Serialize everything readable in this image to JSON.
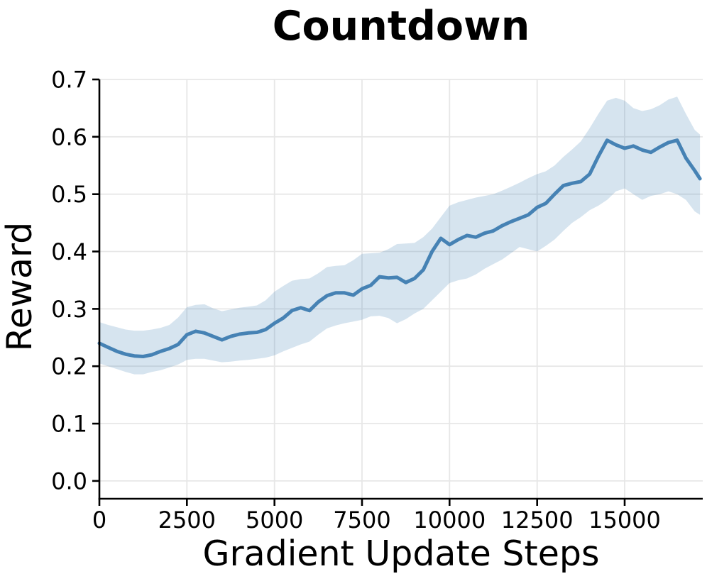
{
  "chart_data": {
    "type": "line",
    "title": "Countdown",
    "xlabel": "Gradient Update Steps",
    "ylabel": "Reward",
    "xlim": [
      0,
      17230
    ],
    "ylim": [
      -0.031,
      0.7
    ],
    "grid": true,
    "legend_position": "none",
    "colors": {
      "line": "#4682B4",
      "band": "rgba(70,130,180,0.22)",
      "grid": "#e7e7e7",
      "axis": "#000000"
    },
    "x_ticks": {
      "values": [
        0,
        2500,
        5000,
        7500,
        10000,
        12500,
        15000
      ],
      "labels": [
        "0",
        "2500",
        "5000",
        "7500",
        "10000",
        "12500",
        "15000"
      ]
    },
    "y_ticks": {
      "values": [
        0.0,
        0.1,
        0.2,
        0.3,
        0.4,
        0.5,
        0.6,
        0.7
      ],
      "labels": [
        "0.0",
        "0.1",
        "0.2",
        "0.3",
        "0.4",
        "0.5",
        "0.6",
        "0.7"
      ]
    },
    "x": [
      0,
      250,
      500,
      750,
      1000,
      1250,
      1500,
      1750,
      2000,
      2250,
      2500,
      2750,
      3000,
      3250,
      3500,
      3750,
      4000,
      4250,
      4500,
      4750,
      5000,
      5250,
      5500,
      5750,
      6000,
      6250,
      6500,
      6750,
      7000,
      7250,
      7500,
      7750,
      8000,
      8250,
      8500,
      8750,
      9000,
      9250,
      9500,
      9750,
      10000,
      10250,
      10500,
      10750,
      11000,
      11250,
      11500,
      11750,
      12000,
      12250,
      12500,
      12750,
      13000,
      13250,
      13500,
      13750,
      14000,
      14250,
      14500,
      14750,
      15000,
      15250,
      15500,
      15750,
      16000,
      16250,
      16500,
      16750,
      17000,
      17150
    ],
    "series": [
      {
        "name": "mean reward",
        "values": [
          0.24,
          0.233,
          0.226,
          0.221,
          0.218,
          0.217,
          0.22,
          0.226,
          0.231,
          0.238,
          0.255,
          0.261,
          0.258,
          0.252,
          0.246,
          0.252,
          0.256,
          0.258,
          0.259,
          0.264,
          0.275,
          0.284,
          0.297,
          0.302,
          0.297,
          0.312,
          0.323,
          0.328,
          0.328,
          0.324,
          0.335,
          0.341,
          0.356,
          0.354,
          0.355,
          0.346,
          0.353,
          0.368,
          0.4,
          0.423,
          0.412,
          0.421,
          0.428,
          0.425,
          0.432,
          0.436,
          0.445,
          0.452,
          0.458,
          0.464,
          0.477,
          0.484,
          0.5,
          0.515,
          0.519,
          0.522,
          0.535,
          0.566,
          0.594,
          0.586,
          0.58,
          0.584,
          0.577,
          0.573,
          0.582,
          0.59,
          0.594,
          0.563,
          0.541,
          0.527
        ]
      }
    ],
    "band": {
      "name": "confidence band",
      "lower": [
        0.205,
        0.2,
        0.195,
        0.19,
        0.186,
        0.186,
        0.19,
        0.193,
        0.198,
        0.203,
        0.211,
        0.213,
        0.213,
        0.21,
        0.207,
        0.208,
        0.21,
        0.211,
        0.213,
        0.215,
        0.219,
        0.226,
        0.232,
        0.238,
        0.243,
        0.255,
        0.266,
        0.271,
        0.275,
        0.278,
        0.281,
        0.287,
        0.288,
        0.284,
        0.275,
        0.282,
        0.292,
        0.3,
        0.315,
        0.33,
        0.345,
        0.35,
        0.353,
        0.36,
        0.37,
        0.378,
        0.386,
        0.397,
        0.408,
        0.404,
        0.4,
        0.41,
        0.421,
        0.436,
        0.45,
        0.46,
        0.472,
        0.48,
        0.49,
        0.505,
        0.51,
        0.5,
        0.49,
        0.497,
        0.5,
        0.505,
        0.5,
        0.49,
        0.47,
        0.464
      ],
      "upper": [
        0.277,
        0.272,
        0.268,
        0.264,
        0.262,
        0.262,
        0.264,
        0.267,
        0.272,
        0.285,
        0.303,
        0.307,
        0.308,
        0.301,
        0.296,
        0.299,
        0.302,
        0.304,
        0.306,
        0.315,
        0.33,
        0.34,
        0.349,
        0.352,
        0.353,
        0.362,
        0.373,
        0.375,
        0.376,
        0.385,
        0.396,
        0.397,
        0.398,
        0.404,
        0.413,
        0.414,
        0.415,
        0.425,
        0.44,
        0.46,
        0.48,
        0.486,
        0.49,
        0.494,
        0.497,
        0.5,
        0.506,
        0.513,
        0.52,
        0.528,
        0.535,
        0.54,
        0.55,
        0.565,
        0.578,
        0.592,
        0.615,
        0.64,
        0.663,
        0.668,
        0.663,
        0.65,
        0.645,
        0.648,
        0.655,
        0.665,
        0.67,
        0.64,
        0.612,
        0.604
      ]
    }
  }
}
